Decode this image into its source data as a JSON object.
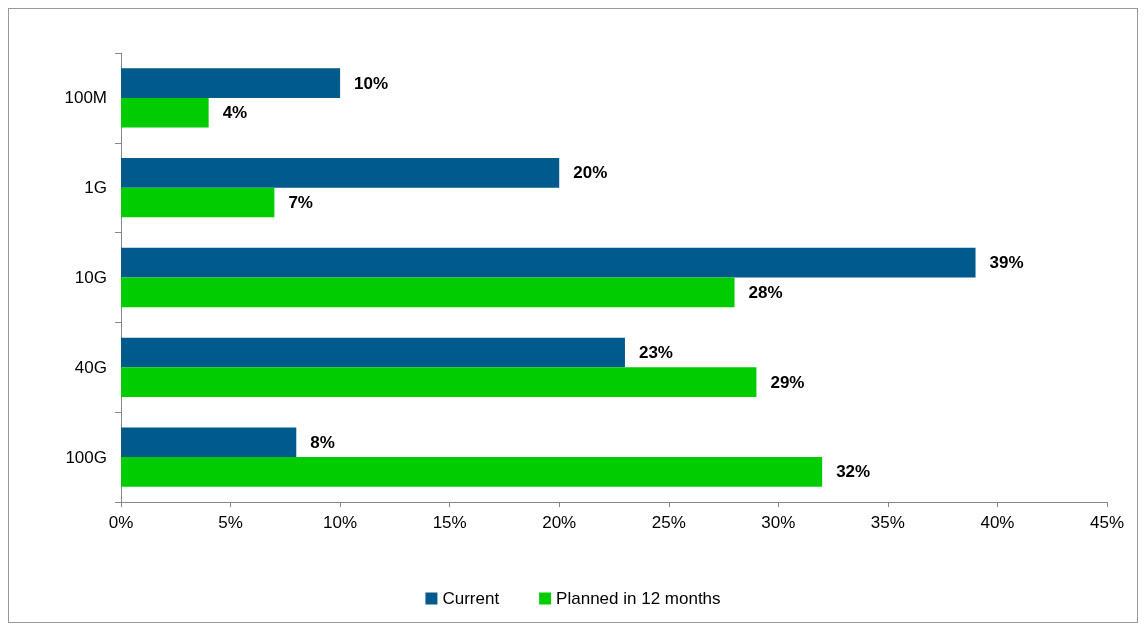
{
  "chart_data": {
    "type": "bar",
    "orientation": "horizontal",
    "categories": [
      "100M",
      "1G",
      "10G",
      "40G",
      "100G"
    ],
    "series": [
      {
        "name": "Current",
        "color": "#005a8c",
        "values": [
          10,
          20,
          39,
          23,
          8
        ],
        "value_labels": [
          "10%",
          "20%",
          "39%",
          "23%",
          "8%"
        ]
      },
      {
        "name": "Planned in 12 months",
        "color": "#00cc00",
        "values": [
          4,
          7,
          28,
          29,
          32
        ],
        "value_labels": [
          "4%",
          "7%",
          "28%",
          "29%",
          "32%"
        ]
      }
    ],
    "xlim": [
      0,
      45
    ],
    "xticks": [
      {
        "value": 0,
        "label": "0%"
      },
      {
        "value": 5,
        "label": "5%"
      },
      {
        "value": 10,
        "label": "10%"
      },
      {
        "value": 15,
        "label": "15%"
      },
      {
        "value": 20,
        "label": "20%"
      },
      {
        "value": 25,
        "label": "25%"
      },
      {
        "value": 30,
        "label": "30%"
      },
      {
        "value": 35,
        "label": "35%"
      },
      {
        "value": 40,
        "label": "40%"
      },
      {
        "value": 45,
        "label": "45%"
      }
    ],
    "grid": false,
    "legend": "bottom"
  }
}
